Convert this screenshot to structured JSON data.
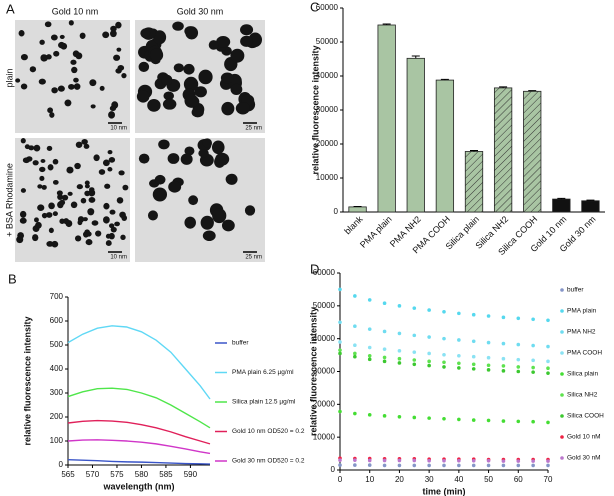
{
  "micrographs": {
    "panel": "A",
    "columns": [
      "Gold 10 nm",
      "Gold 30 nm"
    ],
    "rows": [
      "plain",
      "+ BSA Rhodamine"
    ],
    "scale_bars": [
      "10 nm",
      "25 nm",
      "10 nm",
      "25 nm"
    ]
  },
  "chart_data": [
    {
      "type": "line",
      "panel": "B",
      "xlabel": "wavelength  (nm)",
      "ylabel": "relative fluorescence intensity",
      "x": [
        565,
        568,
        571,
        574,
        577,
        580,
        583,
        586,
        589,
        592,
        594
      ],
      "xlim": [
        565,
        594
      ],
      "xticks": [
        565,
        570,
        575,
        580,
        585,
        590
      ],
      "ylim": [
        0,
        700
      ],
      "yticks": [
        0,
        100,
        200,
        300,
        400,
        500,
        600,
        700
      ],
      "legend": "right",
      "series": [
        {
          "name": "buffer",
          "color": "#3a55c8",
          "values": [
            22,
            20,
            18,
            15,
            13,
            12,
            10,
            8,
            6,
            5,
            4
          ]
        },
        {
          "name": "PMA plain 6.25 µg/ml",
          "color": "#5fd8f5",
          "values": [
            510,
            545,
            570,
            580,
            575,
            555,
            520,
            470,
            400,
            330,
            275
          ]
        },
        {
          "name": "Silica plain 12.5 µg/ml",
          "color": "#4fe64a",
          "values": [
            285,
            305,
            318,
            320,
            315,
            300,
            280,
            250,
            215,
            180,
            155
          ]
        },
        {
          "name": "Gold 10 nm OD520 = 0.2",
          "color": "#e0205a",
          "values": [
            175,
            182,
            185,
            183,
            178,
            168,
            155,
            138,
            118,
            100,
            88
          ]
        },
        {
          "name": "Gold 30 nm OD520 = 0.2",
          "color": "#d036c8",
          "values": [
            100,
            104,
            105,
            103,
            100,
            95,
            88,
            78,
            67,
            55,
            48
          ]
        }
      ]
    },
    {
      "type": "bar",
      "panel": "C",
      "ylabel": "relative fluorescence intensity",
      "categories": [
        "blank",
        "PMA plain",
        "PMA NH2",
        "PMA COOH",
        "Silica plain",
        "Silica NH2",
        "Silica COOH",
        "Gold 10 nm",
        "Gold 30 nm"
      ],
      "values": [
        1500,
        55000,
        45200,
        38800,
        17800,
        36500,
        35500,
        3800,
        3300
      ],
      "errors": [
        100,
        300,
        700,
        200,
        300,
        300,
        200,
        200,
        200
      ],
      "colors": [
        "#a9c5a3",
        "#a9c5a3",
        "#a9c5a3",
        "#a9c5a3",
        "#a9c5a3",
        "#a9c5a3",
        "#a9c5a3",
        "#111111",
        "#111111"
      ],
      "hatched": [
        false,
        false,
        false,
        false,
        true,
        true,
        true,
        false,
        false
      ],
      "ylim": [
        0,
        60000
      ],
      "yticks": [
        0,
        10000,
        20000,
        30000,
        40000,
        50000,
        60000
      ]
    },
    {
      "type": "scatter",
      "panel": "D",
      "xlabel": "time (min)",
      "ylabel": "relative fluorescence intensity",
      "x": [
        0,
        5,
        10,
        15,
        20,
        25,
        30,
        35,
        40,
        45,
        50,
        55,
        60,
        65,
        70
      ],
      "xlim": [
        0,
        70
      ],
      "xticks": [
        0,
        10,
        20,
        30,
        40,
        50,
        60,
        70
      ],
      "ylim": [
        0,
        60000
      ],
      "yticks": [
        0,
        10000,
        20000,
        30000,
        40000,
        50000,
        60000
      ],
      "legend": "right",
      "series": [
        {
          "name": "buffer",
          "color": "#8595c8",
          "values": [
            1500,
            1500,
            1500,
            1400,
            1400,
            1400,
            1400,
            1400,
            1400,
            1400,
            1400,
            1400,
            1400,
            1400,
            1400
          ]
        },
        {
          "name": "PMA plain",
          "color": "#55d8ee",
          "values": [
            55000,
            53000,
            51800,
            50800,
            50000,
            49300,
            48700,
            48200,
            47700,
            47300,
            46900,
            46500,
            46200,
            45900,
            45600
          ]
        },
        {
          "name": "PMA NH2",
          "color": "#6fdcf0",
          "values": [
            45000,
            43800,
            42900,
            42200,
            41600,
            41000,
            40500,
            40000,
            39600,
            39200,
            38800,
            38500,
            38200,
            37900,
            37600
          ]
        },
        {
          "name": "PMA COOH",
          "color": "#8ae2f3",
          "values": [
            39000,
            38000,
            37300,
            36800,
            36300,
            35900,
            35500,
            35100,
            34800,
            34500,
            34200,
            33900,
            33600,
            33400,
            33100
          ]
        },
        {
          "name": "Silica plain",
          "color": "#44dd33",
          "values": [
            17800,
            17200,
            16800,
            16500,
            16200,
            16000,
            15800,
            15600,
            15400,
            15200,
            15100,
            14900,
            14800,
            14700,
            14500
          ]
        },
        {
          "name": "Silica NH2",
          "color": "#5ee24f",
          "values": [
            36500,
            35500,
            34800,
            34300,
            33900,
            33500,
            33100,
            32800,
            32500,
            32200,
            31900,
            31700,
            31400,
            31200,
            31000
          ]
        },
        {
          "name": "Silica COOH",
          "color": "#3cc830",
          "values": [
            35500,
            34500,
            33700,
            33100,
            32600,
            32200,
            31800,
            31400,
            31100,
            30800,
            30500,
            30200,
            30000,
            29800,
            29500
          ]
        },
        {
          "name": "Gold 10 nM",
          "color": "#ee2244",
          "values": [
            3600,
            3500,
            3500,
            3400,
            3400,
            3400,
            3300,
            3300,
            3300,
            3300,
            3200,
            3200,
            3200,
            3200,
            3200
          ]
        },
        {
          "name": "Gold 30 nM",
          "color": "#bb77cc",
          "values": [
            3000,
            3000,
            2900,
            2900,
            2900,
            2900,
            2800,
            2800,
            2800,
            2800,
            2800,
            2700,
            2700,
            2700,
            2700
          ]
        }
      ]
    }
  ]
}
